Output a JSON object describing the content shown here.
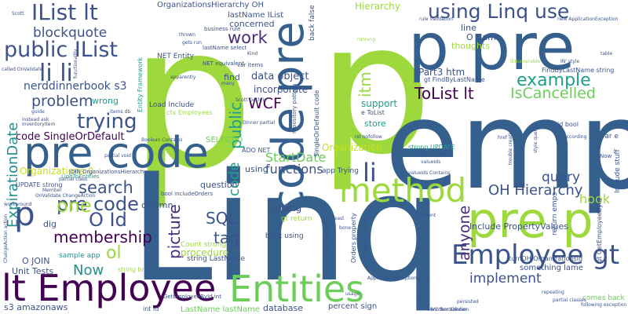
{
  "background": "#ffffff",
  "palette": {
    "green": "#9dd93c",
    "teal": "#2e9f8a",
    "blue": "#35608d",
    "navy": "#3b528b",
    "purple": "#440154",
    "deep": "#472d7b",
    "cyan": "#21918c",
    "lime": "#6ccd5a",
    "sea": "#1f9e89",
    "yellow": "#c8e020"
  },
  "words": [
    {
      "id": "w-p-big-1",
      "text": "p",
      "color": "#9dd93c"
    },
    {
      "id": "w-p-big-2",
      "text": "p",
      "color": "#9dd93c"
    },
    {
      "id": "w-linq-big",
      "text": "Linq",
      "color": "#35608d"
    },
    {
      "id": "w-emp-big",
      "text": "emp",
      "color": "#35608d"
    },
    {
      "id": "w-p-pre",
      "text": "p pre",
      "color": "#35608d"
    },
    {
      "id": "w-pre-code-1",
      "text": "pre code",
      "color": "#35608d"
    },
    {
      "id": "w-code-pre",
      "text": "code pre",
      "color": "#35608d"
    },
    {
      "id": "w-lt-employee",
      "text": "lt Employee",
      "color": "#440154"
    },
    {
      "id": "w-entities",
      "text": "Entities",
      "color": "#6ccd5a"
    },
    {
      "id": "w-pre-p",
      "text": "pre p",
      "color": "#9dd93c"
    },
    {
      "id": "w-method",
      "text": "method",
      "color": "#9dd93c"
    },
    {
      "id": "w-employee-gt",
      "text": "Employee gt",
      "color": "#3b528b"
    },
    {
      "id": "w-ilist-lt",
      "text": "IList lt",
      "color": "#3b528b"
    },
    {
      "id": "w-public-ilist",
      "text": "public IList",
      "color": "#3b528b"
    },
    {
      "id": "w-li-li",
      "text": "li li",
      "color": "#3b528b"
    },
    {
      "id": "w-using-linq-use",
      "text": "using Linq use",
      "color": "#3b528b"
    },
    {
      "id": "w-example",
      "text": "example",
      "color": "#1f9e89"
    },
    {
      "id": "w-trying",
      "text": "trying",
      "color": "#3b528b"
    },
    {
      "id": "w-problem",
      "text": "problem",
      "color": "#3b528b"
    },
    {
      "id": "w-tolist-lt",
      "text": "ToList lt",
      "color": "#440154"
    },
    {
      "id": "w-iscancelled",
      "text": "IsCancelled",
      "color": "#6ccd5a"
    },
    {
      "id": "w-work",
      "text": "work",
      "color": "#472d7b"
    },
    {
      "id": "w-wcf",
      "text": "WCF",
      "color": "#440154"
    },
    {
      "id": "w-blockquote",
      "text": "blockquote",
      "color": "#3b528b"
    },
    {
      "id": "w-nerddinnerbook",
      "text": "nerddinnerbook s3",
      "color": "#3b528b"
    },
    {
      "id": "w-code-singleordefault",
      "text": "code SingleOrDefault",
      "color": "#440154"
    },
    {
      "id": "w-pre-code-2",
      "text": "pre code",
      "color": "#3b528b"
    },
    {
      "id": "w-p-small",
      "text": "p",
      "color": "#3b528b"
    },
    {
      "id": "w-li",
      "text": "li",
      "color": "#3b528b"
    },
    {
      "id": "w-search",
      "text": "search",
      "color": "#3b528b"
    },
    {
      "id": "w-one",
      "text": "one",
      "color": "#9dd93c"
    },
    {
      "id": "w-expirationdate",
      "text": "ExpirationDate",
      "color": "#21918c"
    },
    {
      "id": "w-membership",
      "text": "membership",
      "color": "#440154"
    },
    {
      "id": "w-o-id",
      "text": "O Id",
      "color": "#3b528b"
    },
    {
      "id": "w-ol",
      "text": "ol",
      "color": "#9dd93c"
    },
    {
      "id": "w-now",
      "text": "Now",
      "color": "#21918c"
    },
    {
      "id": "w-picture",
      "text": "picture",
      "color": "#472d7b"
    },
    {
      "id": "w-sql",
      "text": "SQL",
      "color": "#3b528b"
    },
    {
      "id": "w-tag",
      "text": "tag",
      "color": "#3b528b"
    },
    {
      "id": "w-functions",
      "text": "functions",
      "color": "#3b528b"
    },
    {
      "id": "w-startdate",
      "text": "StartDate",
      "color": "#6ccd5a"
    },
    {
      "id": "w-code-vert",
      "text": "code",
      "color": "#1f9e89"
    },
    {
      "id": "w-public-vert",
      "text": "public",
      "color": "#1f9e89"
    },
    {
      "id": "w-itm",
      "text": "itm",
      "color": "#9dd93c"
    },
    {
      "id": "w-anyone",
      "text": "anyone",
      "color": "#472d7b"
    },
    {
      "id": "w-oh-hierarchy",
      "text": "OH Hierarchy",
      "color": "#3b528b"
    },
    {
      "id": "w-query",
      "text": "query",
      "color": "#3b528b"
    },
    {
      "id": "w-hook",
      "text": "hook",
      "color": "#9dd93c"
    },
    {
      "id": "w-implement",
      "text": "implement",
      "color": "#3b528b"
    },
    {
      "id": "w-include-propertyvalues",
      "text": "Include PropertyValues",
      "color": "#3b528b"
    },
    {
      "id": "w-data-object",
      "text": "data object",
      "color": "#3b528b"
    },
    {
      "id": "w-incorporate",
      "text": "incorporate",
      "color": "#3b528b"
    },
    {
      "id": "w-support",
      "text": "support",
      "color": "#1f9e89"
    },
    {
      "id": "w-store",
      "text": "store",
      "color": "#1f9e89"
    },
    {
      "id": "w-organization",
      "text": "Organization",
      "color": "#c8e020"
    },
    {
      "id": "w-part3-htm",
      "text": "Part3 htm",
      "color": "#3b528b"
    },
    {
      "id": "w-concerned",
      "text": "concerned",
      "color": "#3b528b"
    },
    {
      "id": "w-hierarchy",
      "text": "Hierarchy",
      "color": "#9dd93c"
    },
    {
      "id": "w-lastname-ilist",
      "text": "lastName IList",
      "color": "#3b528b"
    },
    {
      "id": "w-organizationshierarchy-oh",
      "text": "OrganizationsHierarchy OH",
      "color": "#3b528b"
    },
    {
      "id": "w-o-name",
      "text": "O Name",
      "color": "#3b528b"
    },
    {
      "id": "w-thoughts",
      "text": "thoughts",
      "color": "#9dd93c"
    },
    {
      "id": "w-line",
      "text": "line",
      "color": "#3b528b"
    },
    {
      "id": "w-loading",
      "text": "loading",
      "color": "#3b528b"
    },
    {
      "id": "w-question",
      "text": "question",
      "color": "#3b528b"
    },
    {
      "id": "w-column",
      "text": "column",
      "color": "#3b528b"
    },
    {
      "id": "w-procedure",
      "text": "procedure",
      "color": "#9dd93c"
    },
    {
      "id": "w-using",
      "text": "using",
      "color": "#3b528b"
    },
    {
      "id": "w-find",
      "text": "find",
      "color": "#3b528b"
    },
    {
      "id": "w-select-0",
      "text": "SELECT 0",
      "color": "#6ccd5a"
    },
    {
      "id": "w-unit-tests",
      "text": "Unit Tests",
      "color": "#3b528b"
    },
    {
      "id": "w-s3-amazonaws",
      "text": "s3 amazonaws",
      "color": "#3b528b"
    },
    {
      "id": "w-lastname-lastname",
      "text": "LastName lastName",
      "color": "#6ccd5a"
    },
    {
      "id": "w-database",
      "text": "database",
      "color": "#3b528b"
    },
    {
      "id": "w-percent-sign",
      "text": "percent sign",
      "color": "#3b528b"
    },
    {
      "id": "w-something-lame",
      "text": "something lame",
      "color": "#3b528b"
    },
    {
      "id": "w-comes-back",
      "text": "comes back",
      "color": "#6ccd5a"
    },
    {
      "id": "w-organizations-0",
      "text": "Organizations 0",
      "color": "#c8e020"
    },
    {
      "id": "w-o-join",
      "text": "O JOIN",
      "color": "#3b528b"
    },
    {
      "id": "w-dig",
      "text": "dig",
      "color": "#3b528b"
    },
    {
      "id": "w-update-strong",
      "text": "UPDATE strong",
      "color": "#3b528b"
    },
    {
      "id": "w-sample-app",
      "text": "sample app",
      "color": "#21918c"
    },
    {
      "id": "w-net-entity",
      "text": "NET Entity",
      "color": "#3b528b"
    },
    {
      "id": "w-load-include",
      "text": "Load Include",
      "color": "#3b528b"
    },
    {
      "id": "w-wrong",
      "text": "wrong",
      "color": "#1f9e89"
    },
    {
      "id": "w-getemployeebyid",
      "text": "GetEmployeeById int",
      "color": "#3b528b"
    },
    {
      "id": "w-count-strong",
      "text": "Count strong",
      "color": "#9dd93c"
    },
    {
      "id": "w-string-lastname",
      "text": "string LastName",
      "color": "#3b528b"
    },
    {
      "id": "w-findbylastname",
      "text": "FindByLastName string",
      "color": "#3b528b"
    },
    {
      "id": "w-gt-findbylastname",
      "text": "gt FindByLastName",
      "color": "#3b528b"
    },
    {
      "id": "w-turnoh",
      "text": "turnOH OrganizationsId",
      "color": "#3b528b"
    },
    {
      "id": "w-return-emps",
      "text": "return emps",
      "color": "#3b528b"
    },
    {
      "id": "w-include-stuff",
      "text": "Include stuff",
      "color": "#3b528b"
    },
    {
      "id": "w-gt-getemployeebyid",
      "text": "gt GetEmployeeById",
      "color": "#3b528b"
    },
    {
      "id": "w-strong-update",
      "text": "strong UPDATE",
      "color": "#1f9e89"
    },
    {
      "id": "w-app-trying",
      "text": "app Trying",
      "color": "#3b528b"
    },
    {
      "id": "w-ado-net",
      "text": "ADO NET",
      "color": "#3b528b"
    },
    {
      "id": "w-back-using",
      "text": "back using",
      "color": "#3b528b"
    },
    {
      "id": "w-orders-count",
      "text": "Orders Count",
      "color": "#3b528b"
    },
    {
      "id": "w-orders-property",
      "text": "Orders property",
      "color": "#3b528b"
    },
    {
      "id": "w-gt-return",
      "text": "gt return",
      "color": "#9dd93c"
    },
    {
      "id": "w-id-bool",
      "text": "id bool",
      "color": "#3b528b"
    },
    {
      "id": "w-var-e",
      "text": "var e",
      "color": "#3b528b"
    },
    {
      "id": "w-singleordefault-code",
      "text": "SingleOrDefault code",
      "color": "#3b528b"
    },
    {
      "id": "w-repository-pattern",
      "text": "repository pattern",
      "color": "#3b528b"
    },
    {
      "id": "w-entity-framework",
      "text": "Entity Framework",
      "color": "#1f9e89"
    },
    {
      "id": "w-business-rule",
      "text": "business rule",
      "color": "#3b528b"
    },
    {
      "id": "w-lastname-select",
      "text": "lastName select",
      "color": "#3b528b"
    },
    {
      "id": "w-net-equivalent",
      "text": "NET equivalent",
      "color": "#3b528b"
    },
    {
      "id": "w-ctx-employees",
      "text": "ctx Employees",
      "color": "#9dd93c"
    },
    {
      "id": "w-string-br",
      "text": "string br",
      "color": "#9dd93c"
    },
    {
      "id": "w-int-id",
      "text": "int id",
      "color": "#3b528b"
    },
    {
      "id": "w-bool-includeorders",
      "text": "bool includeOrders",
      "color": "#3b528b"
    },
    {
      "id": "w-linqtoentities",
      "text": "LinqToEntities",
      "color": "#1f9e89"
    },
    {
      "id": "w-join-orgh",
      "text": "JOIN OrganizationsHierarchy",
      "color": "#3b528b"
    },
    {
      "id": "w-var-items",
      "text": "var items",
      "color": "#3b528b"
    },
    {
      "id": "w-scott-guthrie",
      "text": "Scott Guthrie",
      "color": "#3b528b"
    },
    {
      "id": "w-dinner-partial",
      "text": "Dinner partial",
      "color": "#3b528b"
    },
    {
      "id": "w-back-false",
      "text": "back false",
      "color": "#3b528b"
    },
    {
      "id": "w-e-tolist",
      "text": "e ToList",
      "color": "#3b528b"
    },
    {
      "id": "w-ienumerable",
      "text": "IEnumerable",
      "color": "#9dd93c"
    },
    {
      "id": "w-rule-validation",
      "text": "rule validation",
      "color": "#3b528b"
    },
    {
      "id": "w-applicationexception",
      "text": "ApplicationException Rule",
      "color": "#3b528b"
    },
    {
      "id": "w-mvc-nerddinner",
      "text": "MVC NerdDinner",
      "color": "#3b528b"
    },
    {
      "id": "w-new-applicationexception",
      "text": "new ApplicationException",
      "color": "#3b528b"
    },
    {
      "id": "w-called-onvalidate",
      "text": "called OnValidate",
      "color": "#3b528b"
    },
    {
      "id": "w-inventoryitem",
      "text": "InventoryItem",
      "color": "#3b528b"
    },
    {
      "id": "w-partial-class",
      "text": "partial class",
      "color": "#3b528b"
    },
    {
      "id": "w-partial-void",
      "text": "partial void",
      "color": "#3b528b"
    },
    {
      "id": "w-onvalidate-changeaction",
      "text": "OnValidate ChangeAction",
      "color": "#3b528b"
    },
    {
      "id": "w-changeaction-action",
      "text": "ChangeAction action",
      "color": "#3b528b"
    },
    {
      "id": "w-valueids-contains",
      "text": "valueIds Contains",
      "color": "#3b528b"
    },
    {
      "id": "w-table",
      "text": "table",
      "color": "#3b528b"
    },
    {
      "id": "w-ienstyle",
      "text": "IN' style",
      "color": "#3b528b"
    },
    {
      "id": "w-apparently",
      "text": "apparently",
      "color": "#3b528b"
    },
    {
      "id": "w-functionality",
      "text": "functionality",
      "color": "#3b528b"
    },
    {
      "id": "w-rel-nofollow",
      "text": "rel nofollow",
      "color": "#3b528b"
    },
    {
      "id": "w-following-exception",
      "text": "following exception",
      "color": "#3b528b"
    },
    {
      "id": "w-many",
      "text": "many",
      "color": "#3b528b"
    },
    {
      "id": "w-according",
      "text": "according",
      "color": "#3b528b"
    },
    {
      "id": "w-workaround",
      "text": "workaround",
      "color": "#3b528b"
    },
    {
      "id": "w-instead-ask",
      "text": "instead ask",
      "color": "#3b528b"
    },
    {
      "id": "w-running",
      "text": "running",
      "color": "#9dd93c"
    },
    {
      "id": "w-guide",
      "text": "guide",
      "color": "#3b528b"
    },
    {
      "id": "w-kind",
      "text": "Kind",
      "color": "#3b528b"
    },
    {
      "id": "w-scott",
      "text": "Scott",
      "color": "#3b528b"
    },
    {
      "id": "w-member",
      "text": "Member",
      "color": "#3b528b"
    },
    {
      "id": "w-least",
      "text": "least",
      "color": "#3b528b"
    },
    {
      "id": "w-bone",
      "text": "bone",
      "color": "#3b528b"
    },
    {
      "id": "w-moment",
      "text": "moment",
      "color": "#3b528b"
    },
    {
      "id": "w-now-small",
      "text": "Now",
      "color": "#3b528b"
    },
    {
      "id": "w-href",
      "text": "href",
      "color": "#3b528b"
    },
    {
      "id": "w-persisted",
      "text": "persisted",
      "color": "#3b528b"
    },
    {
      "id": "w-another-solution",
      "text": "another solution",
      "color": "#3b528b"
    },
    {
      "id": "w-repeating",
      "text": "repeating",
      "color": "#3b528b"
    },
    {
      "id": "w-partial-classes",
      "text": "partial classes",
      "color": "#3b528b"
    },
    {
      "id": "w-usage",
      "text": "usage",
      "color": "#3b528b"
    },
    {
      "id": "w-valueids",
      "text": "valueIds",
      "color": "#3b528b"
    },
    {
      "id": "w-given-data",
      "text": "given data",
      "color": "#3b528b"
    },
    {
      "id": "w-gets-run",
      "text": "gets run",
      "color": "#3b528b"
    },
    {
      "id": "w-thrown",
      "text": "thrown",
      "color": "#3b528b"
    },
    {
      "id": "w-items-db",
      "text": "items db",
      "color": "#3b528b"
    },
    {
      "id": "w-boolean-contains",
      "text": "Boolean Contains",
      "color": "#3b528b"
    },
    {
      "id": "w-violations-property",
      "text": "violations property",
      "color": "#3b528b"
    },
    {
      "id": "w-trouble-creating",
      "text": "trouble creating",
      "color": "#3b528b"
    },
    {
      "id": "w-style-query",
      "text": "style query",
      "color": "#3b528b"
    },
    {
      "id": "w-rule",
      "text": "rule",
      "color": "#3b528b"
    }
  ]
}
